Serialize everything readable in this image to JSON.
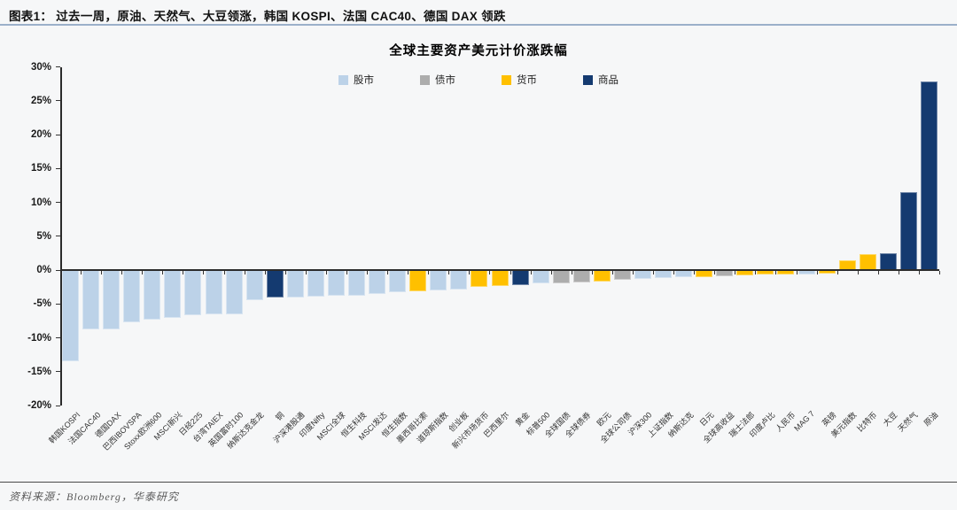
{
  "header": {
    "title": "图表1：  过去一周，原油、天然气、大豆领涨，韩国 KOSPI、法国 CAC40、德国 DAX 领跌"
  },
  "footer": {
    "source": "资料来源：Bloomberg，华泰研究"
  },
  "chart_data": {
    "type": "bar",
    "title": "全球主要资产美元计价涨跌幅",
    "legend": [
      "股市",
      "债市",
      "货币",
      "商品"
    ],
    "palette": {
      "股市": "#BCD2E8",
      "债市": "#ADADAD",
      "货币": "#FFC000",
      "商品": "#143A70"
    },
    "ylim": [
      -20,
      30
    ],
    "yticks": [
      "30%",
      "25%",
      "20%",
      "15%",
      "10%",
      "5%",
      "0%",
      "-5%",
      "-10%",
      "-15%",
      "-20%"
    ],
    "grid": false,
    "legend_position": "top-center",
    "categories": [
      "韩国KOSPI",
      "法国CAC40",
      "德国DAX",
      "巴西IBOVSPA",
      "Stoxx欧洲600",
      "MSCI新兴",
      "日经225",
      "台湾TAIEX",
      "英国富时100",
      "纳斯达克金龙",
      "铜",
      "沪深港股通",
      "印度Nifty",
      "MSCI全球",
      "恒生科技",
      "MSCI发达",
      "恒生指数",
      "墨西哥比索",
      "道琼斯指数",
      "创业板",
      "新兴市场货币",
      "巴西里尔",
      "黄金",
      "标普500",
      "全球国债",
      "全球债券",
      "欧元",
      "全球公司债",
      "沪深300",
      "上证指数",
      "纳斯达克",
      "日元",
      "全球高收益",
      "瑞士法郎",
      "印度卢比",
      "人民币",
      "MAG 7",
      "英镑",
      "美元指数",
      "比特币",
      "大豆",
      "天然气",
      "原油"
    ],
    "bar_types": [
      "股市",
      "股市",
      "股市",
      "股市",
      "股市",
      "股市",
      "股市",
      "股市",
      "股市",
      "股市",
      "商品",
      "股市",
      "股市",
      "股市",
      "股市",
      "股市",
      "股市",
      "货币",
      "股市",
      "股市",
      "货币",
      "货币",
      "商品",
      "股市",
      "债市",
      "债市",
      "货币",
      "债市",
      "股市",
      "股市",
      "股市",
      "货币",
      "债市",
      "货币",
      "货币",
      "货币",
      "股市",
      "货币",
      "货币",
      "货币",
      "商品",
      "商品",
      "商品"
    ],
    "series": [
      {
        "name": "美元计价涨跌幅(%)",
        "values": [
          -13.4,
          -8.8,
          -8.7,
          -7.7,
          -7.3,
          -7.0,
          -6.7,
          -6.6,
          -6.5,
          -4.4,
          -4.1,
          -4.0,
          -3.9,
          -3.8,
          -3.8,
          -3.5,
          -3.3,
          -3.2,
          -3.0,
          -2.9,
          -2.5,
          -2.4,
          -2.2,
          -2.0,
          -1.9,
          -1.8,
          -1.7,
          -1.5,
          -1.3,
          -1.2,
          -1.1,
          -1.0,
          -0.9,
          -0.8,
          -0.7,
          -0.6,
          -0.6,
          -0.5,
          1.4,
          2.3,
          2.5,
          11.5,
          27.9
        ]
      }
    ]
  }
}
